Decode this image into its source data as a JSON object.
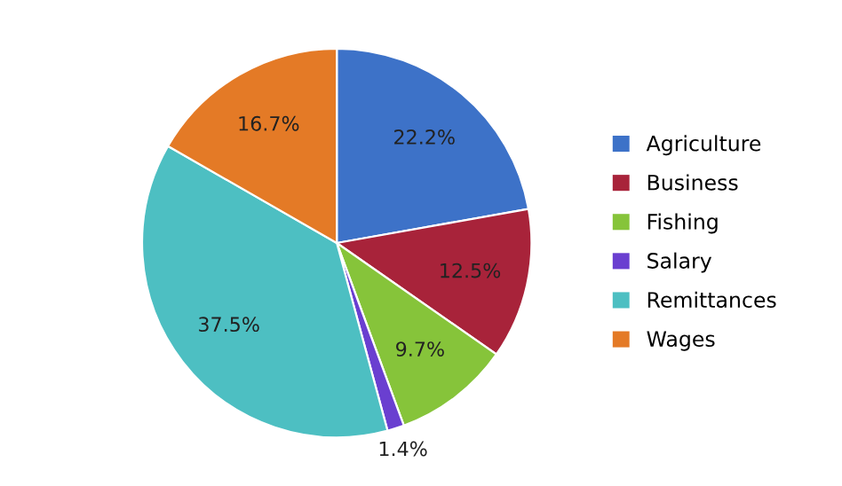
{
  "chart_data": {
    "type": "pie",
    "categories": [
      "Agriculture",
      "Business",
      "Fishing",
      "Salary",
      "Remittances",
      "Wages"
    ],
    "values": [
      22.2,
      12.5,
      9.7,
      1.4,
      37.5,
      16.7
    ],
    "colors": [
      "#3d72c8",
      "#a8233a",
      "#86c43a",
      "#6a3fd0",
      "#4dbfc2",
      "#e47a26"
    ],
    "value_labels": [
      "22.2%",
      "12.5%",
      "9.7%",
      "1.4%",
      "37.5%",
      "16.7%"
    ],
    "legend": "right"
  }
}
